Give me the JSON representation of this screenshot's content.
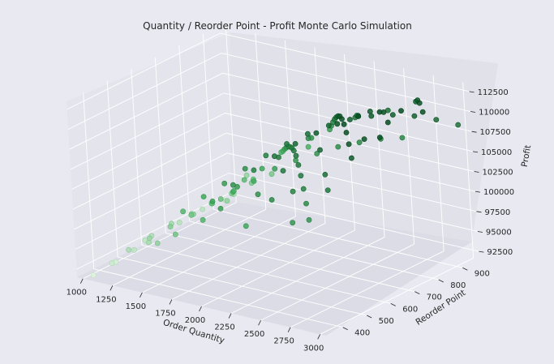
{
  "chart_data": {
    "type": "scatter",
    "title": "Quantity / Reorder Point - Profit Monte Carlo Simulation",
    "xlabel": "Order Quantity",
    "ylabel": "Reorder Point",
    "zlabel": "Profit",
    "x_ticks": [
      "1000",
      "1250",
      "1500",
      "1750",
      "2000",
      "2250",
      "2500",
      "2750",
      "3000"
    ],
    "y_ticks": [
      "400",
      "500",
      "600",
      "700",
      "800",
      "900"
    ],
    "z_ticks": [
      "92500",
      "95000",
      "97500",
      "100000",
      "102500",
      "105000",
      "107500",
      "110000",
      "112500"
    ],
    "xlim": [
      950,
      3050
    ],
    "ylim": [
      330,
      970
    ],
    "zlim": [
      91500,
      113500
    ],
    "colormap": "Greens",
    "color_min": "#e5f5e0",
    "color_max": "#00441b",
    "grid": true,
    "points": [
      {
        "x": 1050,
        "y": 350,
        "z": 91800
      },
      {
        "x": 1100,
        "y": 420,
        "z": 92600
      },
      {
        "x": 1150,
        "y": 380,
        "z": 93200
      },
      {
        "x": 1200,
        "y": 450,
        "z": 94000
      },
      {
        "x": 1250,
        "y": 500,
        "z": 95200
      },
      {
        "x": 1300,
        "y": 560,
        "z": 96000
      },
      {
        "x": 1350,
        "y": 620,
        "z": 96500
      },
      {
        "x": 1400,
        "y": 680,
        "z": 97100
      },
      {
        "x": 1450,
        "y": 740,
        "z": 97600
      },
      {
        "x": 1500,
        "y": 800,
        "z": 98200
      },
      {
        "x": 1550,
        "y": 860,
        "z": 98600
      },
      {
        "x": 1250,
        "y": 900,
        "z": 96800
      },
      {
        "x": 1300,
        "y": 380,
        "z": 95400
      },
      {
        "x": 1400,
        "y": 420,
        "z": 96600
      },
      {
        "x": 1500,
        "y": 460,
        "z": 97800
      },
      {
        "x": 1600,
        "y": 500,
        "z": 99000
      },
      {
        "x": 1700,
        "y": 540,
        "z": 100200
      },
      {
        "x": 1800,
        "y": 580,
        "z": 101400
      },
      {
        "x": 1900,
        "y": 620,
        "z": 102500
      },
      {
        "x": 2000,
        "y": 660,
        "z": 103800
      },
      {
        "x": 2100,
        "y": 700,
        "z": 104600
      },
      {
        "x": 2200,
        "y": 740,
        "z": 105200
      },
      {
        "x": 2300,
        "y": 780,
        "z": 105800
      },
      {
        "x": 2400,
        "y": 820,
        "z": 106100
      },
      {
        "x": 2500,
        "y": 860,
        "z": 106300
      },
      {
        "x": 2600,
        "y": 900,
        "z": 106200
      },
      {
        "x": 1600,
        "y": 880,
        "z": 101200
      },
      {
        "x": 1700,
        "y": 840,
        "z": 102300
      },
      {
        "x": 1800,
        "y": 800,
        "z": 103500
      },
      {
        "x": 1900,
        "y": 760,
        "z": 104600
      },
      {
        "x": 2000,
        "y": 720,
        "z": 105700
      },
      {
        "x": 2100,
        "y": 680,
        "z": 106600
      },
      {
        "x": 2200,
        "y": 640,
        "z": 107400
      },
      {
        "x": 2300,
        "y": 600,
        "z": 108000
      },
      {
        "x": 2400,
        "y": 560,
        "z": 108300
      },
      {
        "x": 2500,
        "y": 520,
        "z": 108100
      },
      {
        "x": 2600,
        "y": 480,
        "z": 107700
      },
      {
        "x": 2700,
        "y": 440,
        "z": 107000
      },
      {
        "x": 2800,
        "y": 400,
        "z": 106100
      },
      {
        "x": 2900,
        "y": 360,
        "z": 105000
      },
      {
        "x": 1700,
        "y": 420,
        "z": 101000
      },
      {
        "x": 1800,
        "y": 460,
        "z": 102600
      },
      {
        "x": 1900,
        "y": 500,
        "z": 104000
      },
      {
        "x": 2000,
        "y": 540,
        "z": 105600
      },
      {
        "x": 2100,
        "y": 580,
        "z": 107000
      },
      {
        "x": 2200,
        "y": 620,
        "z": 108200
      },
      {
        "x": 2300,
        "y": 660,
        "z": 109200
      },
      {
        "x": 2400,
        "y": 700,
        "z": 110000
      },
      {
        "x": 2500,
        "y": 740,
        "z": 110500
      },
      {
        "x": 2600,
        "y": 780,
        "z": 110700
      },
      {
        "x": 2700,
        "y": 820,
        "z": 110600
      },
      {
        "x": 2800,
        "y": 860,
        "z": 110200
      },
      {
        "x": 2900,
        "y": 900,
        "z": 109500
      },
      {
        "x": 3000,
        "y": 940,
        "z": 108600
      },
      {
        "x": 1900,
        "y": 940,
        "z": 104200
      },
      {
        "x": 2000,
        "y": 900,
        "z": 105600
      },
      {
        "x": 2100,
        "y": 860,
        "z": 107000
      },
      {
        "x": 2200,
        "y": 820,
        "z": 108300
      },
      {
        "x": 2300,
        "y": 780,
        "z": 109500
      },
      {
        "x": 2400,
        "y": 740,
        "z": 110600
      },
      {
        "x": 2500,
        "y": 700,
        "z": 111500
      },
      {
        "x": 2600,
        "y": 660,
        "z": 112100
      },
      {
        "x": 2700,
        "y": 620,
        "z": 112400
      },
      {
        "x": 2800,
        "y": 580,
        "z": 112300
      },
      {
        "x": 2900,
        "y": 540,
        "z": 111800
      },
      {
        "x": 3000,
        "y": 500,
        "z": 111000
      },
      {
        "x": 2000,
        "y": 400,
        "z": 103600
      },
      {
        "x": 2100,
        "y": 440,
        "z": 105400
      },
      {
        "x": 2200,
        "y": 480,
        "z": 107000
      },
      {
        "x": 2300,
        "y": 520,
        "z": 108500
      },
      {
        "x": 2400,
        "y": 560,
        "z": 109800
      },
      {
        "x": 2500,
        "y": 600,
        "z": 110900
      },
      {
        "x": 2600,
        "y": 640,
        "z": 111800
      },
      {
        "x": 2700,
        "y": 680,
        "z": 112500
      },
      {
        "x": 2800,
        "y": 720,
        "z": 112800
      },
      {
        "x": 2900,
        "y": 760,
        "z": 112700
      },
      {
        "x": 3000,
        "y": 800,
        "z": 112300
      },
      {
        "x": 2750,
        "y": 900,
        "z": 111400
      },
      {
        "x": 2850,
        "y": 860,
        "z": 112000
      },
      {
        "x": 2950,
        "y": 680,
        "z": 112600
      },
      {
        "x": 2650,
        "y": 940,
        "z": 110300
      },
      {
        "x": 2550,
        "y": 380,
        "z": 106000
      },
      {
        "x": 2350,
        "y": 420,
        "z": 105400
      },
      {
        "x": 2150,
        "y": 360,
        "z": 103800
      },
      {
        "x": 1950,
        "y": 380,
        "z": 101400
      },
      {
        "x": 1750,
        "y": 360,
        "z": 99200
      },
      {
        "x": 1550,
        "y": 380,
        "z": 97100
      },
      {
        "x": 1350,
        "y": 440,
        "z": 95600
      },
      {
        "x": 1150,
        "y": 520,
        "z": 94000
      },
      {
        "x": 1200,
        "y": 640,
        "z": 94600
      },
      {
        "x": 1150,
        "y": 760,
        "z": 94300
      },
      {
        "x": 1100,
        "y": 880,
        "z": 93400
      },
      {
        "x": 1450,
        "y": 580,
        "z": 97400
      },
      {
        "x": 1650,
        "y": 700,
        "z": 100600
      },
      {
        "x": 1850,
        "y": 680,
        "z": 103000
      },
      {
        "x": 2050,
        "y": 780,
        "z": 106000
      },
      {
        "x": 2250,
        "y": 880,
        "z": 107800
      },
      {
        "x": 2450,
        "y": 920,
        "z": 108800
      },
      {
        "x": 2650,
        "y": 540,
        "z": 110200
      },
      {
        "x": 2850,
        "y": 460,
        "z": 109000
      },
      {
        "x": 2950,
        "y": 420,
        "z": 108000
      },
      {
        "x": 3000,
        "y": 620,
        "z": 111800
      },
      {
        "x": 2750,
        "y": 760,
        "z": 112000
      },
      {
        "x": 2450,
        "y": 480,
        "z": 107800
      },
      {
        "x": 2250,
        "y": 560,
        "z": 107600
      },
      {
        "x": 2050,
        "y": 480,
        "z": 104400
      },
      {
        "x": 1850,
        "y": 560,
        "z": 102000
      },
      {
        "x": 1650,
        "y": 600,
        "z": 99700
      },
      {
        "x": 1450,
        "y": 720,
        "z": 97000
      },
      {
        "x": 1300,
        "y": 820,
        "z": 95800
      },
      {
        "x": 1750,
        "y": 920,
        "z": 101800
      },
      {
        "x": 2150,
        "y": 940,
        "z": 106800
      },
      {
        "x": 2350,
        "y": 840,
        "z": 109000
      },
      {
        "x": 2550,
        "y": 800,
        "z": 110800
      },
      {
        "x": 2950,
        "y": 580,
        "z": 112000
      },
      {
        "x": 2650,
        "y": 420,
        "z": 106800
      },
      {
        "x": 2800,
        "y": 340,
        "z": 104600
      },
      {
        "x": 2400,
        "y": 340,
        "z": 102800
      },
      {
        "x": 1950,
        "y": 840,
        "z": 104800
      },
      {
        "x": 1600,
        "y": 760,
        "z": 99600
      }
    ]
  }
}
